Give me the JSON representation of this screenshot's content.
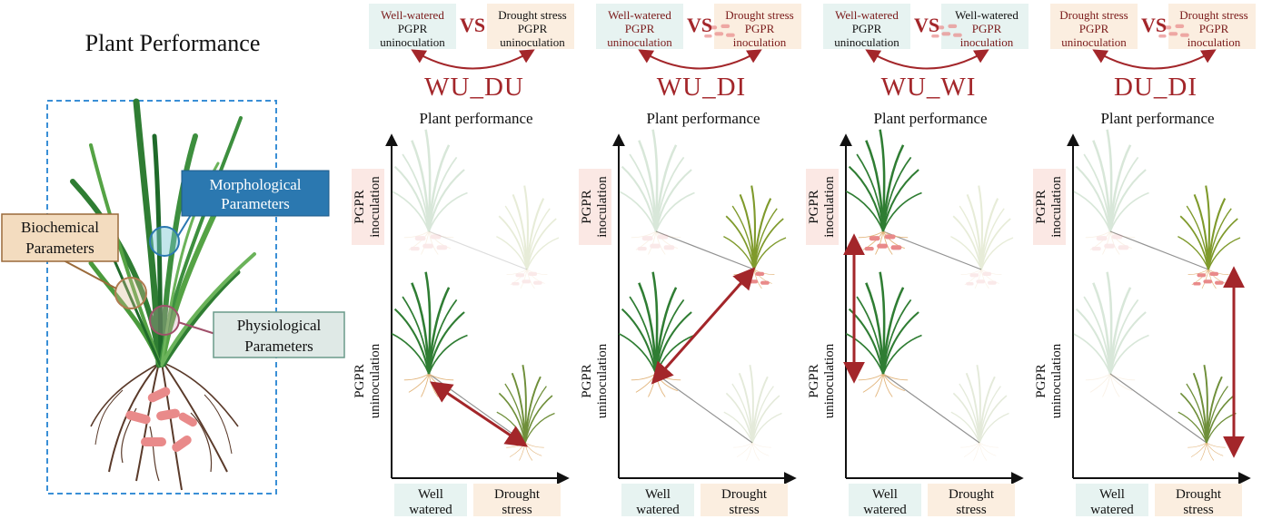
{
  "main_title": "Plant Performance",
  "parameters": {
    "morphological": [
      "Morphological",
      "Parameters"
    ],
    "biochemical": [
      "Biochemical",
      "Parameters"
    ],
    "physiological": [
      "Physiological",
      "Parameters"
    ]
  },
  "panel_subtitle": "Plant performance",
  "vs_label": "VS",
  "x_axis_labels": {
    "well_watered": [
      "Well",
      "watered"
    ],
    "drought": [
      "Drought",
      "stress"
    ]
  },
  "y_axis_labels": {
    "inoculation": [
      "PGPR",
      "inoculation"
    ],
    "uninoculation": [
      "PGPR",
      "uninoculation"
    ]
  },
  "comparisons": [
    {
      "code": "WU_DU",
      "left": {
        "lines": [
          "Well-watered",
          "PGPR",
          "uninoculation"
        ]
      },
      "right": {
        "lines": [
          "Drought stress",
          "PGPR",
          "uninoculation"
        ]
      }
    },
    {
      "code": "WU_DI",
      "left": {
        "lines": [
          "Well-watered",
          "PGPR",
          "uninoculation"
        ]
      },
      "right": {
        "lines": [
          "Drought stress",
          "PGPR",
          "inoculation"
        ]
      }
    },
    {
      "code": "WU_WI",
      "left": {
        "lines": [
          "Well-watered",
          "PGPR",
          "uninoculation"
        ]
      },
      "right": {
        "lines": [
          "Well-watered",
          "PGPR",
          "inoculation"
        ]
      }
    },
    {
      "code": "DU_DI",
      "left": {
        "lines": [
          "Drought stress",
          "PGPR",
          "uninoculation"
        ]
      },
      "right": {
        "lines": [
          "Drought stress",
          "PGPR",
          "inoculation"
        ]
      }
    }
  ],
  "colors": {
    "accent_red": "#a3262a",
    "plant_green": "#2f7d33",
    "plant_dry": "#7f9a2c",
    "root_brown": "#5a3a2a",
    "bacteria_pink": "#e98a8a",
    "morph_box": "#2b78b0",
    "bio_box": "#f3dcbf",
    "phys_box": "#dfe9e6",
    "ww_box": "#e7f3f1",
    "ds_box": "#fbeee0",
    "inoc_box": "#fbe8e4"
  }
}
